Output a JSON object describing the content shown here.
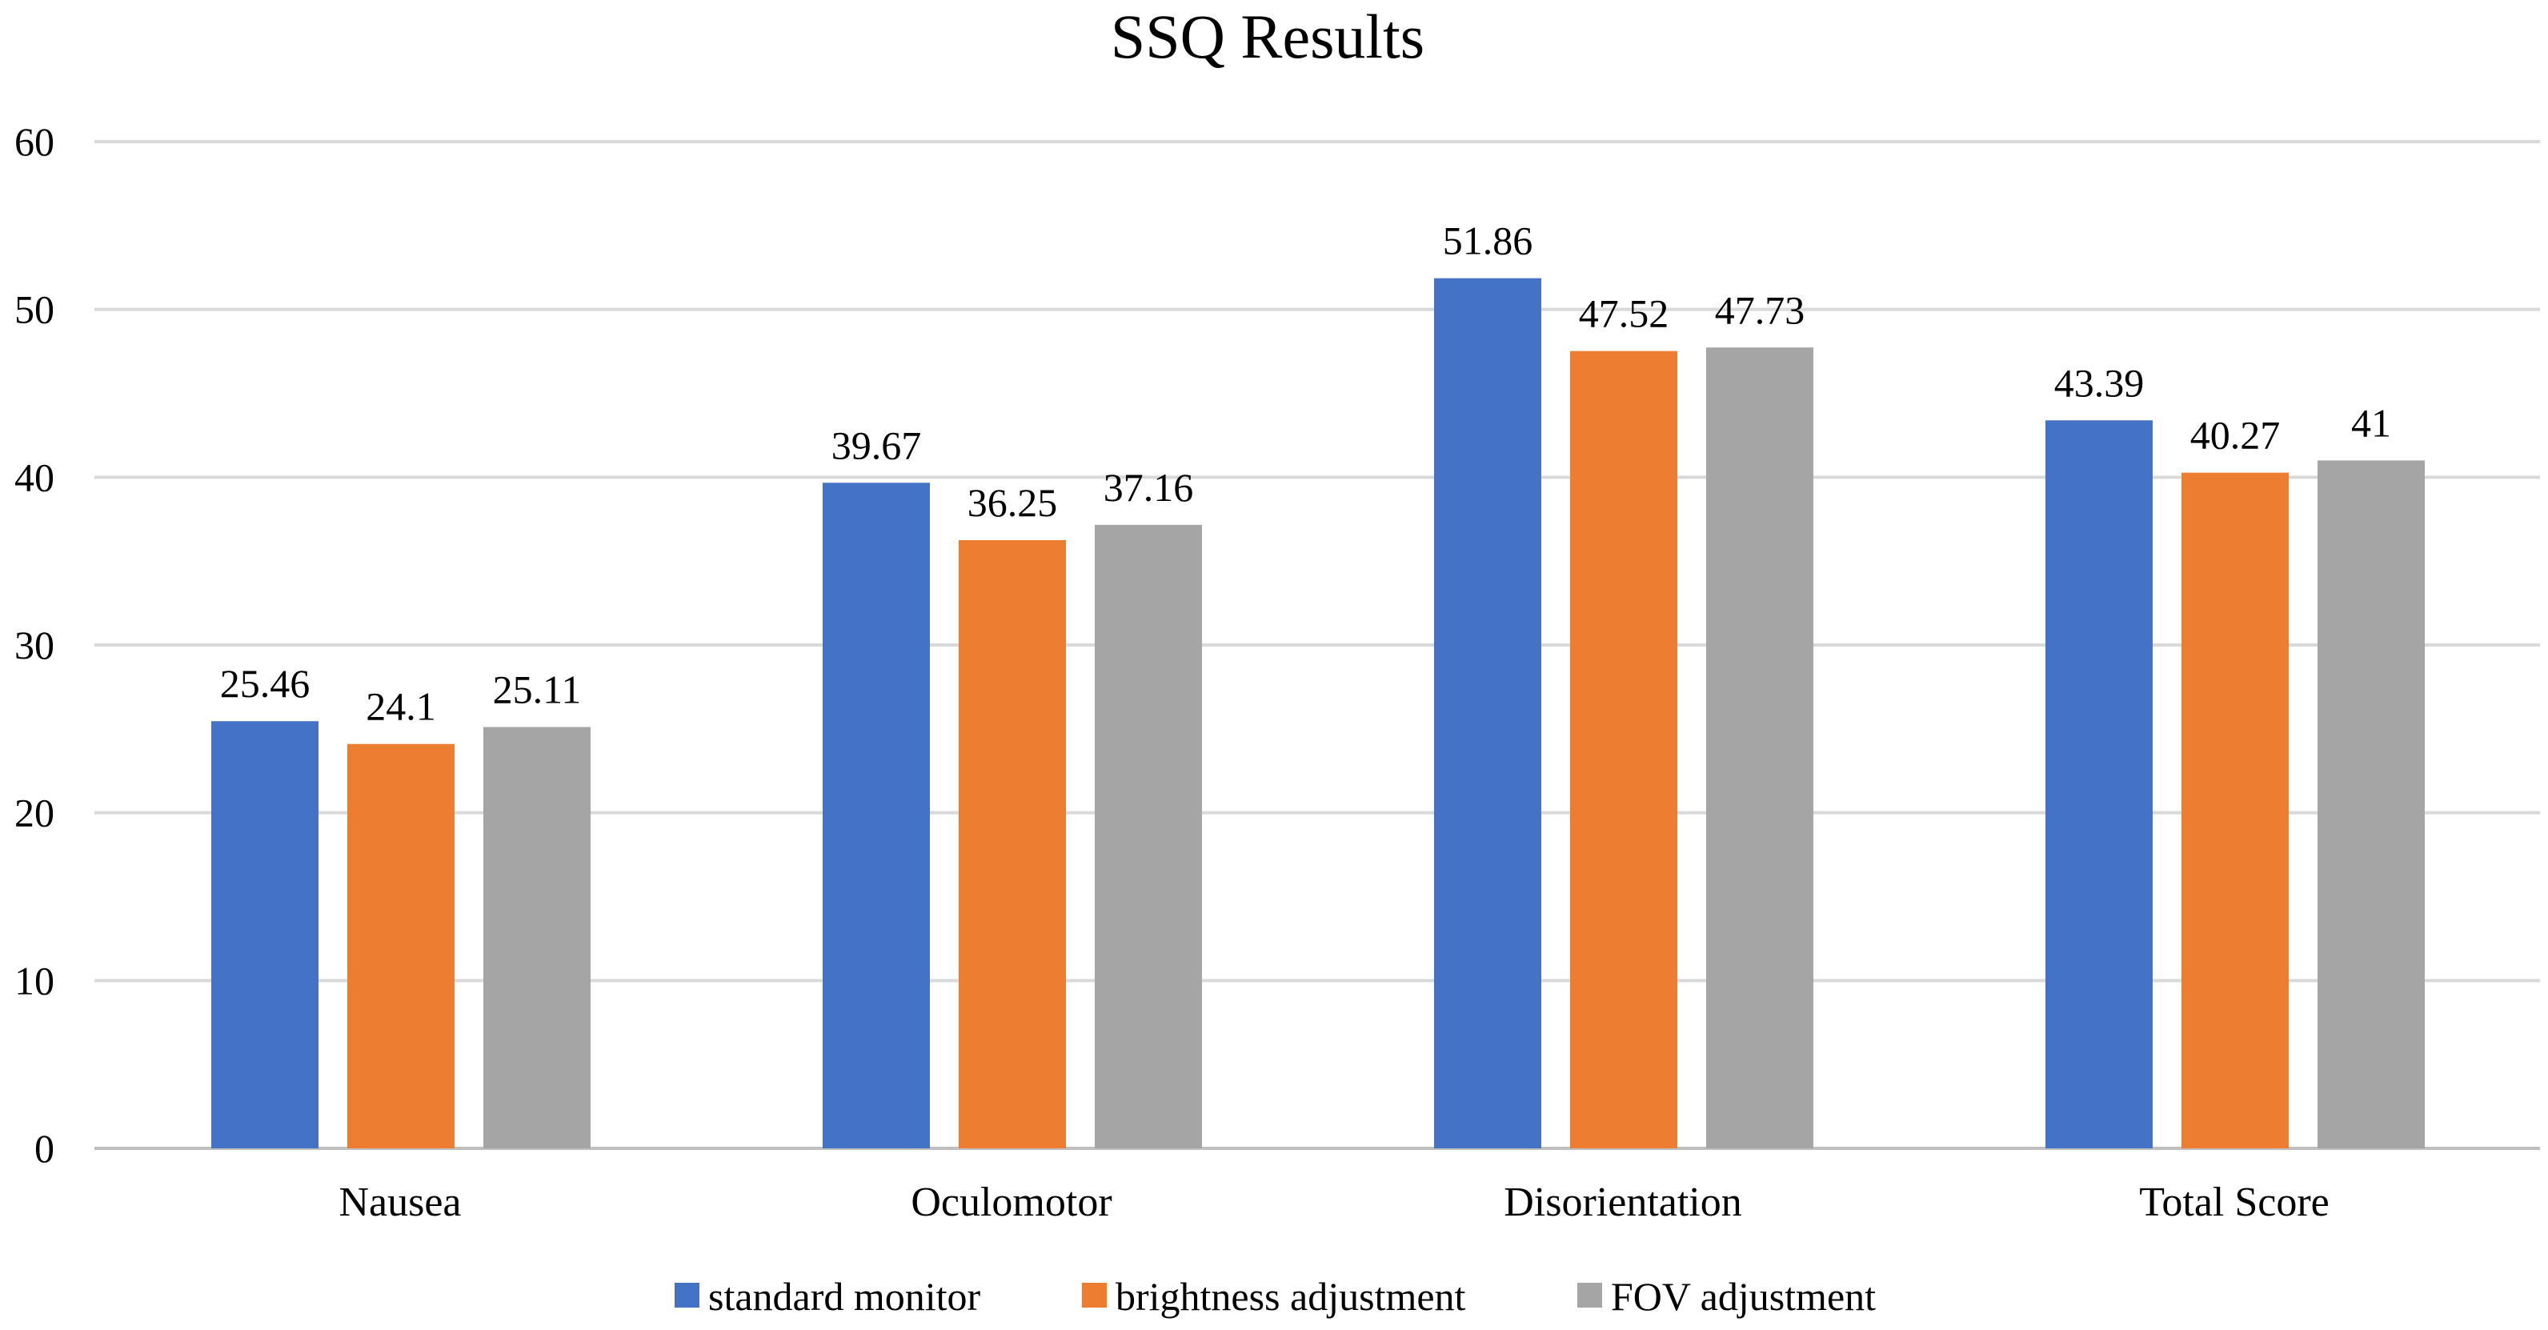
{
  "chart_data": {
    "type": "bar",
    "title": "SSQ Results",
    "xlabel": "",
    "ylabel": "",
    "categories": [
      "Nausea",
      "Oculomotor",
      "Disorientation",
      "Total Score"
    ],
    "series": [
      {
        "name": "standard monitor",
        "color": "#4472C4",
        "values": [
          25.46,
          39.67,
          51.86,
          43.39
        ],
        "labels": [
          "25.46",
          "39.67",
          "51.86",
          "43.39"
        ]
      },
      {
        "name": "brightness adjustment",
        "color": "#ED7D31",
        "values": [
          24.1,
          36.25,
          47.52,
          40.27
        ],
        "labels": [
          "24.1",
          "36.25",
          "47.52",
          "40.27"
        ]
      },
      {
        "name": "FOV adjustment",
        "color": "#A5A5A5",
        "values": [
          25.11,
          37.16,
          47.73,
          41
        ],
        "labels": [
          "25.11",
          "37.16",
          "47.73",
          "41"
        ]
      }
    ],
    "ylim": [
      0,
      60
    ],
    "yticks": [
      0,
      10,
      20,
      30,
      40,
      50,
      60
    ],
    "grid": true,
    "gridColor": "#D9D9D9",
    "legend_position": "bottom"
  }
}
